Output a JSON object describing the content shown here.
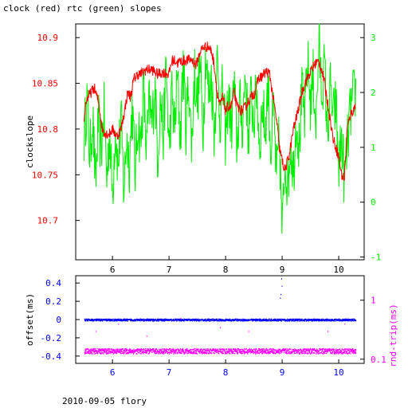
{
  "title": "clock (red) rtc (green) slopes",
  "footer": "2010-09-05 flory",
  "colors": {
    "clock": "#ff0000",
    "rtc": "#00ee00",
    "offset": "#0000ff",
    "rndtrip": "#ff00ff",
    "axis": "#000000"
  },
  "chart_data": [
    {
      "type": "line",
      "ylabel": "clockslope",
      "y2label": "",
      "xlim": [
        5.35,
        10.45
      ],
      "ylim": [
        10.657,
        10.915
      ],
      "y2lim": [
        -1.05,
        3.25
      ],
      "xticks": [
        "6",
        "7",
        "8",
        "9",
        "10"
      ],
      "xtick_values": [
        6,
        7,
        8,
        9,
        10
      ],
      "yticks": [
        "10.7",
        "10.75",
        "10.8",
        "10.85",
        "10.9"
      ],
      "ytick_values": [
        10.7,
        10.75,
        10.8,
        10.85,
        10.9
      ],
      "y2ticks": [
        "-1",
        "0",
        "1",
        "2",
        "3"
      ],
      "y2tick_values": [
        -1,
        0,
        1,
        2,
        3
      ],
      "series": [
        {
          "name": "clock",
          "axis": "left",
          "x": [
            5.5,
            5.53,
            5.57,
            5.62,
            5.68,
            5.75,
            5.82,
            5.88,
            5.95,
            6.0,
            6.08,
            6.15,
            6.2,
            6.27,
            6.32,
            6.38,
            6.45,
            6.5,
            6.55,
            6.6,
            6.7,
            6.8,
            6.9,
            7.0,
            7.05,
            7.1,
            7.15,
            7.2,
            7.3,
            7.4,
            7.48,
            7.55,
            7.62,
            7.7,
            7.75,
            7.8,
            7.85,
            7.9,
            7.95,
            8.0,
            8.05,
            8.1,
            8.15,
            8.2,
            8.28,
            8.33,
            8.4,
            8.45,
            8.52,
            8.58,
            8.65,
            8.72,
            8.78,
            8.85,
            8.9,
            8.95,
            9.0,
            9.05,
            9.12,
            9.2,
            9.28,
            9.35,
            9.4,
            9.48,
            9.55,
            9.6,
            9.65,
            9.7,
            9.75,
            9.8,
            9.85,
            9.9,
            9.95,
            10.0,
            10.05,
            10.1,
            10.15,
            10.2,
            10.25,
            10.3
          ],
          "values": [
            10.81,
            10.83,
            10.835,
            10.84,
            10.845,
            10.83,
            10.8,
            10.795,
            10.795,
            10.8,
            10.792,
            10.8,
            10.815,
            10.84,
            10.835,
            10.855,
            10.86,
            10.86,
            10.863,
            10.865,
            10.865,
            10.86,
            10.862,
            10.86,
            10.875,
            10.875,
            10.872,
            10.874,
            10.875,
            10.876,
            10.87,
            10.885,
            10.89,
            10.89,
            10.885,
            10.87,
            10.84,
            10.825,
            10.835,
            10.82,
            10.825,
            10.825,
            10.84,
            10.825,
            10.82,
            10.822,
            10.83,
            10.835,
            10.84,
            10.855,
            10.858,
            10.863,
            10.86,
            10.83,
            10.81,
            10.78,
            10.765,
            10.755,
            10.77,
            10.8,
            10.82,
            10.84,
            10.85,
            10.86,
            10.868,
            10.873,
            10.873,
            10.865,
            10.85,
            10.83,
            10.81,
            10.79,
            10.78,
            10.77,
            10.75,
            10.745,
            10.8,
            10.815,
            10.82,
            10.825
          ]
        },
        {
          "name": "rtc",
          "axis": "right",
          "x": [
            5.5,
            5.55,
            5.6,
            5.65,
            5.7,
            5.75,
            5.8,
            5.85,
            5.9,
            5.95,
            6.0,
            6.05,
            6.1,
            6.15,
            6.2,
            6.25,
            6.3,
            6.35,
            6.4,
            6.45,
            6.5,
            6.55,
            6.6,
            6.65,
            6.7,
            6.75,
            6.8,
            6.85,
            6.9,
            6.95,
            7.0,
            7.05,
            7.1,
            7.15,
            7.2,
            7.25,
            7.3,
            7.35,
            7.4,
            7.45,
            7.5,
            7.55,
            7.6,
            7.65,
            7.7,
            7.75,
            7.8,
            7.85,
            7.9,
            7.95,
            8.0,
            8.05,
            8.1,
            8.15,
            8.2,
            8.25,
            8.3,
            8.35,
            8.4,
            8.45,
            8.5,
            8.55,
            8.6,
            8.65,
            8.7,
            8.75,
            8.8,
            8.85,
            8.9,
            8.95,
            9.0,
            9.05,
            9.1,
            9.15,
            9.2,
            9.25,
            9.3,
            9.35,
            9.4,
            9.45,
            9.5,
            9.55,
            9.6,
            9.65,
            9.7,
            9.75,
            9.8,
            9.85,
            9.9,
            9.95,
            10.0,
            10.05,
            10.1,
            10.15,
            10.2,
            10.25,
            10.3
          ],
          "values": [
            1.2,
            1.9,
            0.8,
            1.6,
            0.3,
            1.5,
            0.9,
            1.7,
            0.4,
            1.3,
            0.1,
            1.4,
            0.6,
            1.6,
            0.2,
            1.2,
            0.7,
            1.8,
            0.5,
            1.5,
            1.0,
            2.1,
            0.9,
            1.8,
            1.4,
            2.2,
            0.8,
            1.9,
            1.2,
            2.5,
            0.9,
            2.0,
            1.3,
            2.3,
            1.1,
            2.6,
            1.4,
            2.2,
            1.0,
            2.4,
            1.8,
            2.5,
            1.3,
            2.8,
            1.9,
            2.3,
            1.2,
            2.6,
            1.5,
            2.1,
            1.1,
            2.0,
            1.3,
            2.2,
            1.0,
            1.8,
            1.4,
            2.4,
            1.2,
            1.9,
            1.5,
            2.1,
            1.0,
            1.8,
            1.3,
            2.2,
            0.9,
            1.7,
            0.4,
            1.2,
            -0.6,
            0.8,
            0.3,
            1.1,
            0.5,
            1.6,
            1.0,
            2.0,
            1.5,
            2.6,
            1.8,
            2.3,
            1.4,
            2.9,
            2.0,
            2.5,
            1.2,
            2.1,
            1.5,
            1.8,
            0.6,
            1.2,
            0.4,
            1.0,
            1.6,
            1.9,
            2.0
          ]
        }
      ]
    },
    {
      "type": "scatter",
      "ylabel": "offset(ms)",
      "y2label": "rnd-trip(ms)",
      "xlim": [
        5.35,
        10.45
      ],
      "ylim": [
        -0.48,
        0.48
      ],
      "xticks": [
        "6",
        "7",
        "8",
        "9",
        "10"
      ],
      "xtick_values": [
        6,
        7,
        8,
        9,
        10
      ],
      "yticks": [
        "-0.4",
        "-0.2",
        "0",
        "0.2",
        "0.4"
      ],
      "ytick_values": [
        -0.4,
        -0.2,
        0,
        0.2,
        0.4
      ],
      "y2ticks": [
        "0.1",
        "1"
      ],
      "y2tick_values": [
        0.1,
        1
      ],
      "y2_scale": "log",
      "y2lim": [
        0.085,
        2.6
      ],
      "series": [
        {
          "name": "offset",
          "axis": "left",
          "baseline": 0.0,
          "spread": 0.012,
          "outliers": [
            [
              8.96,
              0.24
            ],
            [
              8.97,
              0.28
            ],
            [
              8.98,
              0.45
            ],
            [
              8.99,
              0.37
            ]
          ]
        },
        {
          "name": "rnd-trip",
          "axis": "right",
          "baseline": 0.14,
          "spread": 0.02,
          "outliers": [
            [
              5.7,
              0.3
            ],
            [
              6.1,
              0.4
            ],
            [
              6.6,
              0.25
            ],
            [
              7.2,
              0.5
            ],
            [
              7.9,
              0.35
            ],
            [
              8.4,
              0.3
            ],
            [
              9.3,
              0.45
            ],
            [
              9.8,
              0.3
            ],
            [
              10.1,
              0.4
            ]
          ]
        }
      ]
    }
  ]
}
